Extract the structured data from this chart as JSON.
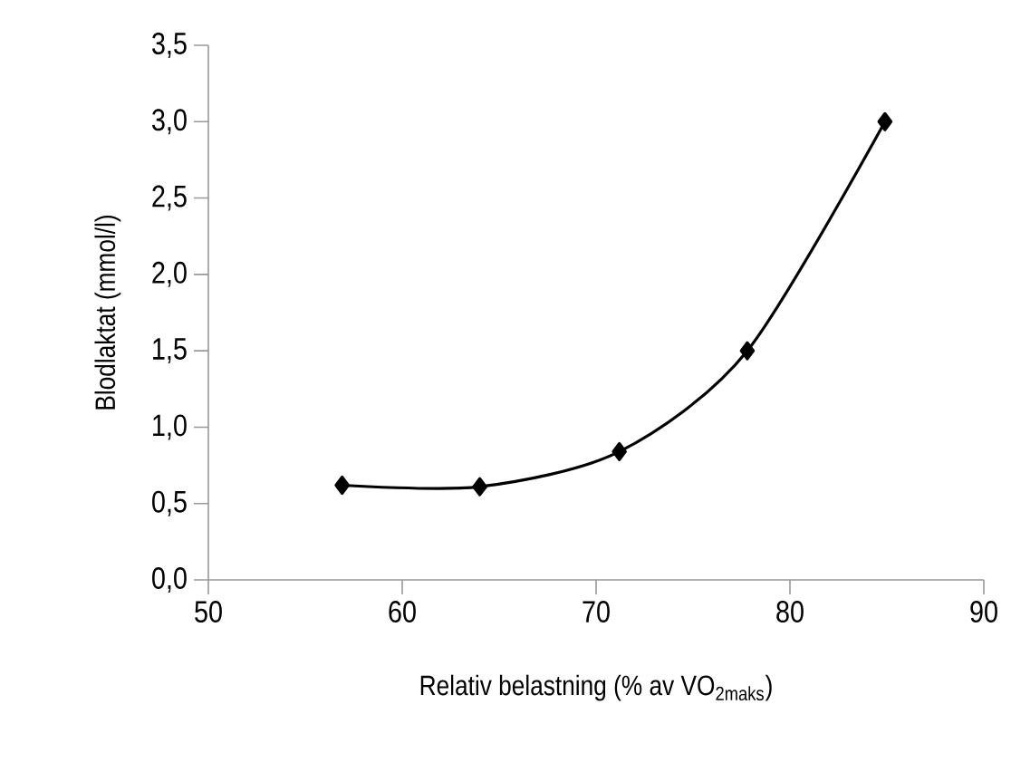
{
  "chart_data": {
    "type": "line",
    "xlabel": "Relativ belastning (% av VO$_{2maks}$)",
    "ylabel": "Blodlaktat (mmol/l)",
    "x": [
      56.9,
      64.0,
      71.2,
      77.8,
      84.9
    ],
    "series": [
      {
        "color": "#000000",
        "values": [
          0.62,
          0.61,
          0.84,
          1.5,
          3.0
        ]
      }
    ],
    "xlim": [
      50,
      90
    ],
    "xticks": [
      50,
      60,
      70,
      80,
      90
    ],
    "ylim": [
      0,
      3.5
    ],
    "yticks": [
      {
        "value": 0,
        "label": "0,0"
      },
      {
        "value": 0.5,
        "label": "0,5"
      },
      {
        "value": 1,
        "label": "1,0"
      },
      {
        "value": 1.5,
        "label": "1,5"
      },
      {
        "value": 2,
        "label": "2,0"
      },
      {
        "value": 2.5,
        "label": "2,5"
      },
      {
        "value": 3,
        "label": "3,0"
      },
      {
        "value": 3.5,
        "label": "3,5"
      }
    ],
    "grid": false,
    "marker": "diamond",
    "line_style": "solid"
  }
}
